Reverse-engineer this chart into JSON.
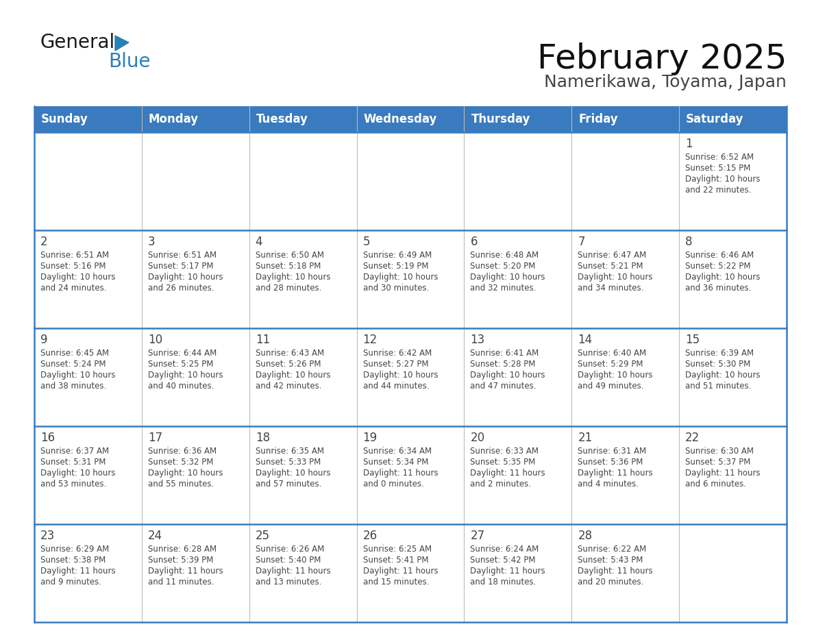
{
  "title": "February 2025",
  "subtitle": "Namerikawa, Toyama, Japan",
  "header_color": "#3a7abf",
  "header_text_color": "#ffffff",
  "cell_bg_color": "#ffffff",
  "border_color": "#3a7abf",
  "grid_color": "#cccccc",
  "text_color": "#444444",
  "days_of_week": [
    "Sunday",
    "Monday",
    "Tuesday",
    "Wednesday",
    "Thursday",
    "Friday",
    "Saturday"
  ],
  "calendar_data": [
    [
      null,
      null,
      null,
      null,
      null,
      null,
      {
        "day": "1",
        "sunrise": "6:52 AM",
        "sunset": "5:15 PM",
        "daylight_h": "10 hours",
        "daylight_m": "and 22 minutes."
      }
    ],
    [
      {
        "day": "2",
        "sunrise": "6:51 AM",
        "sunset": "5:16 PM",
        "daylight_h": "10 hours",
        "daylight_m": "and 24 minutes."
      },
      {
        "day": "3",
        "sunrise": "6:51 AM",
        "sunset": "5:17 PM",
        "daylight_h": "10 hours",
        "daylight_m": "and 26 minutes."
      },
      {
        "day": "4",
        "sunrise": "6:50 AM",
        "sunset": "5:18 PM",
        "daylight_h": "10 hours",
        "daylight_m": "and 28 minutes."
      },
      {
        "day": "5",
        "sunrise": "6:49 AM",
        "sunset": "5:19 PM",
        "daylight_h": "10 hours",
        "daylight_m": "and 30 minutes."
      },
      {
        "day": "6",
        "sunrise": "6:48 AM",
        "sunset": "5:20 PM",
        "daylight_h": "10 hours",
        "daylight_m": "and 32 minutes."
      },
      {
        "day": "7",
        "sunrise": "6:47 AM",
        "sunset": "5:21 PM",
        "daylight_h": "10 hours",
        "daylight_m": "and 34 minutes."
      },
      {
        "day": "8",
        "sunrise": "6:46 AM",
        "sunset": "5:22 PM",
        "daylight_h": "10 hours",
        "daylight_m": "and 36 minutes."
      }
    ],
    [
      {
        "day": "9",
        "sunrise": "6:45 AM",
        "sunset": "5:24 PM",
        "daylight_h": "10 hours",
        "daylight_m": "and 38 minutes."
      },
      {
        "day": "10",
        "sunrise": "6:44 AM",
        "sunset": "5:25 PM",
        "daylight_h": "10 hours",
        "daylight_m": "and 40 minutes."
      },
      {
        "day": "11",
        "sunrise": "6:43 AM",
        "sunset": "5:26 PM",
        "daylight_h": "10 hours",
        "daylight_m": "and 42 minutes."
      },
      {
        "day": "12",
        "sunrise": "6:42 AM",
        "sunset": "5:27 PM",
        "daylight_h": "10 hours",
        "daylight_m": "and 44 minutes."
      },
      {
        "day": "13",
        "sunrise": "6:41 AM",
        "sunset": "5:28 PM",
        "daylight_h": "10 hours",
        "daylight_m": "and 47 minutes."
      },
      {
        "day": "14",
        "sunrise": "6:40 AM",
        "sunset": "5:29 PM",
        "daylight_h": "10 hours",
        "daylight_m": "and 49 minutes."
      },
      {
        "day": "15",
        "sunrise": "6:39 AM",
        "sunset": "5:30 PM",
        "daylight_h": "10 hours",
        "daylight_m": "and 51 minutes."
      }
    ],
    [
      {
        "day": "16",
        "sunrise": "6:37 AM",
        "sunset": "5:31 PM",
        "daylight_h": "10 hours",
        "daylight_m": "and 53 minutes."
      },
      {
        "day": "17",
        "sunrise": "6:36 AM",
        "sunset": "5:32 PM",
        "daylight_h": "10 hours",
        "daylight_m": "and 55 minutes."
      },
      {
        "day": "18",
        "sunrise": "6:35 AM",
        "sunset": "5:33 PM",
        "daylight_h": "10 hours",
        "daylight_m": "and 57 minutes."
      },
      {
        "day": "19",
        "sunrise": "6:34 AM",
        "sunset": "5:34 PM",
        "daylight_h": "11 hours",
        "daylight_m": "and 0 minutes."
      },
      {
        "day": "20",
        "sunrise": "6:33 AM",
        "sunset": "5:35 PM",
        "daylight_h": "11 hours",
        "daylight_m": "and 2 minutes."
      },
      {
        "day": "21",
        "sunrise": "6:31 AM",
        "sunset": "5:36 PM",
        "daylight_h": "11 hours",
        "daylight_m": "and 4 minutes."
      },
      {
        "day": "22",
        "sunrise": "6:30 AM",
        "sunset": "5:37 PM",
        "daylight_h": "11 hours",
        "daylight_m": "and 6 minutes."
      }
    ],
    [
      {
        "day": "23",
        "sunrise": "6:29 AM",
        "sunset": "5:38 PM",
        "daylight_h": "11 hours",
        "daylight_m": "and 9 minutes."
      },
      {
        "day": "24",
        "sunrise": "6:28 AM",
        "sunset": "5:39 PM",
        "daylight_h": "11 hours",
        "daylight_m": "and 11 minutes."
      },
      {
        "day": "25",
        "sunrise": "6:26 AM",
        "sunset": "5:40 PM",
        "daylight_h": "11 hours",
        "daylight_m": "and 13 minutes."
      },
      {
        "day": "26",
        "sunrise": "6:25 AM",
        "sunset": "5:41 PM",
        "daylight_h": "11 hours",
        "daylight_m": "and 15 minutes."
      },
      {
        "day": "27",
        "sunrise": "6:24 AM",
        "sunset": "5:42 PM",
        "daylight_h": "11 hours",
        "daylight_m": "and 18 minutes."
      },
      {
        "day": "28",
        "sunrise": "6:22 AM",
        "sunset": "5:43 PM",
        "daylight_h": "11 hours",
        "daylight_m": "and 20 minutes."
      },
      null
    ]
  ],
  "logo_text_general": "General",
  "logo_text_blue": "Blue",
  "logo_color_general": "#1a1a1a",
  "logo_color_blue": "#2980b9",
  "logo_triangle_color": "#2980b9",
  "title_fontsize": 36,
  "subtitle_fontsize": 18,
  "header_fontsize": 12,
  "day_num_fontsize": 12,
  "cell_text_fontsize": 8.5
}
